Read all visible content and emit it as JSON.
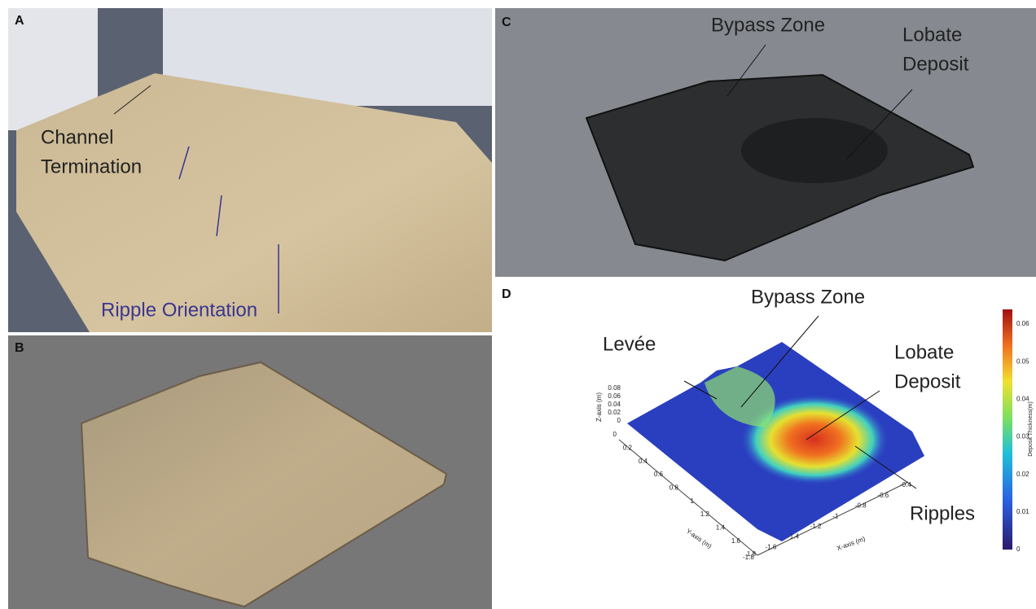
{
  "panels": [
    {
      "label": "A",
      "annotations": {
        "channel_termination": [
          "Channel",
          "Termination"
        ],
        "ripple_orientation": "Ripple Orientation"
      }
    },
    {
      "label": "B"
    },
    {
      "label": "C",
      "annotations": {
        "bypass_zone": "Bypass Zone",
        "lobate_deposit": [
          "Lobate",
          "Deposit"
        ]
      }
    },
    {
      "label": "D",
      "annotations": {
        "bypass_zone": "Bypass Zone",
        "levee": "Levée",
        "lobate_deposit": [
          "Lobate",
          "Deposit"
        ],
        "ripples": "Ripples"
      },
      "z_axis": {
        "label": "Z-axis (m)",
        "ticks": [
          0,
          0.02,
          0.04,
          0.06,
          0.08
        ]
      },
      "y_axis": {
        "label": "Y-axis (m)",
        "ticks": [
          0,
          0.2,
          0.4,
          0.6,
          0.8,
          1,
          1.2,
          1.4,
          1.6,
          1.8
        ]
      },
      "x_axis": {
        "label": "X-axis (m)",
        "ticks": [
          -0.4,
          -0.6,
          -0.8,
          -1,
          -1.2,
          -1.4,
          -1.6,
          -1.8
        ]
      },
      "colorbar": {
        "label": "Deposit Thickness(m)",
        "ticks": [
          0,
          0.01,
          0.02,
          0.03,
          0.04,
          0.05,
          0.06
        ]
      }
    }
  ]
}
